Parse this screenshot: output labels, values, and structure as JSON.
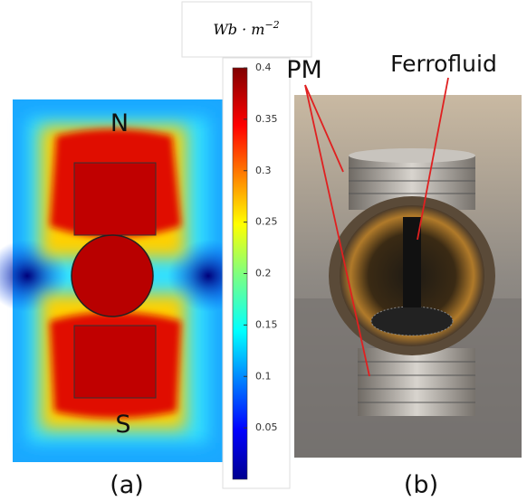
{
  "panel_a": {
    "label": "(a)",
    "north": "N",
    "south": "S"
  },
  "colorbar": {
    "unit": {
      "base": "Wb · m",
      "exponent": "−2"
    },
    "range": [
      0,
      0.4
    ],
    "ticks": [
      0.4,
      0.35,
      0.3,
      0.25,
      0.2,
      0.15,
      0.1,
      0.05
    ]
  },
  "panel_b": {
    "label": "(b)",
    "magnet_label": "PM",
    "fluid_label": "Ferrofluid"
  }
}
